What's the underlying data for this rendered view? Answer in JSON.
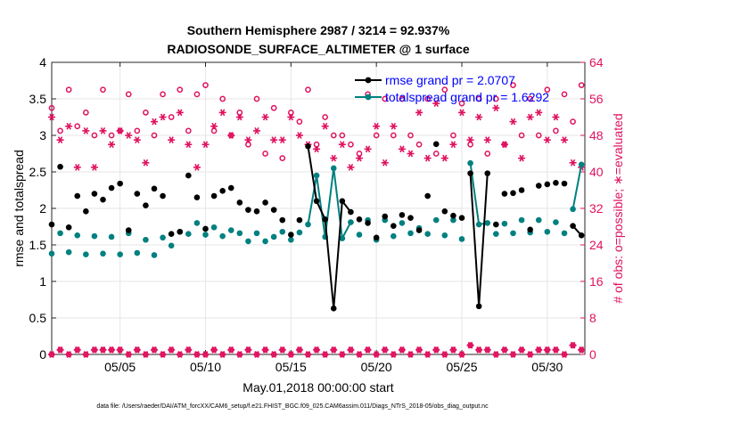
{
  "chart_data": {
    "type": "scatter",
    "title_line1": "Southern Hemisphere 2987 / 3214 = 92.937%",
    "title_line2": "RADIOSONDE_SURFACE_ALTIMETER @ 1 surface",
    "xlabel": "May.01,2018 00:00:00 start",
    "ylabel_left": "rmse and totalspread",
    "ylabel_right": "# of obs: o=possible; ∗=evaluated",
    "footer": "data file: /Users/raeder/DAI/ATM_forcXX/CAM6_setup/f.e21.FHIST_BGC.f09_025.CAM6assim.011/Diags_NTrS_2018-05/obs_diag_output.nc",
    "xlim": [
      1,
      32.2
    ],
    "ylim_left": [
      0,
      4
    ],
    "ylim_right": [
      0,
      64
    ],
    "x_ticks": [
      5,
      10,
      15,
      20,
      25,
      30
    ],
    "x_tick_labels": [
      "05/05",
      "05/10",
      "05/15",
      "05/20",
      "05/25",
      "05/30"
    ],
    "y_left_ticks": [
      0,
      0.5,
      1,
      1.5,
      2,
      2.5,
      3,
      3.5,
      4
    ],
    "y_left_tick_labels": [
      "0",
      "0.5",
      "1",
      "1.5",
      "2",
      "2.5",
      "3",
      "3.5",
      "4"
    ],
    "y_right_ticks": [
      0,
      8,
      16,
      24,
      32,
      40,
      48,
      56,
      64
    ],
    "y_right_tick_labels": [
      "0",
      "8",
      "16",
      "24",
      "32",
      "40",
      "48",
      "56",
      "64"
    ],
    "legend": [
      {
        "name": "rmse grand pr = 2.0707",
        "color": "#000000"
      },
      {
        "name": "totalspread grand pr = 1.6292",
        "color": "#008080"
      }
    ],
    "colors": {
      "rmse": "#000000",
      "spread": "#008080",
      "obs": "#e0115f",
      "legend_text": "#0000ff",
      "grid": "#e6e6e6"
    },
    "rmse": {
      "x": [
        1.0,
        1.5,
        2.0,
        2.5,
        3.0,
        3.5,
        4.0,
        4.5,
        5.0,
        5.5,
        6.0,
        6.5,
        7.0,
        7.5,
        8.0,
        8.5,
        9.0,
        9.5,
        10.0,
        10.5,
        11.0,
        11.5,
        12.0,
        12.5,
        13.0,
        13.5,
        14.0,
        14.5,
        15.0,
        15.5,
        16.0,
        16.5,
        17.0,
        17.5,
        18.0,
        18.5,
        19.0,
        19.5,
        20.0,
        20.5,
        21.0,
        21.5,
        22.0,
        22.5,
        23.0,
        23.5,
        24.0,
        24.5,
        25.0,
        25.5,
        26.0,
        26.5,
        27.0,
        27.5,
        28.0,
        28.5,
        29.0,
        29.5,
        30.0,
        30.5,
        31.0,
        31.5,
        32.0
      ],
      "values": [
        1.78,
        2.57,
        1.74,
        2.17,
        1.96,
        2.2,
        2.12,
        2.28,
        2.34,
        1.7,
        2.2,
        2.04,
        2.27,
        2.17,
        1.65,
        1.68,
        2.45,
        2.15,
        1.72,
        2.17,
        2.24,
        2.28,
        2.08,
        1.98,
        1.96,
        2.08,
        1.98,
        1.84,
        1.64,
        1.84,
        2.85,
        2.1,
        1.85,
        0.63,
        2.1,
        1.95,
        1.85,
        1.8,
        1.6,
        1.89,
        1.76,
        1.91,
        1.87,
        1.7,
        2.17,
        2.88,
        1.96,
        1.9,
        1.87,
        2.48,
        0.66,
        2.48,
        1.78,
        2.2,
        2.21,
        2.25,
        1.71,
        2.31,
        2.33,
        2.35,
        2.34,
        1.76,
        1.63
      ]
    },
    "totalspread": {
      "x": [
        1.0,
        1.5,
        2.0,
        2.5,
        3.0,
        3.5,
        4.0,
        4.5,
        5.0,
        5.5,
        6.0,
        6.5,
        7.0,
        7.5,
        8.0,
        8.5,
        9.0,
        9.5,
        10.0,
        10.5,
        11.0,
        11.5,
        12.0,
        12.5,
        13.0,
        13.5,
        14.0,
        14.5,
        15.0,
        15.5,
        16.0,
        16.5,
        17.0,
        17.5,
        18.0,
        18.5,
        19.0,
        19.5,
        20.0,
        20.5,
        21.0,
        21.5,
        22.0,
        22.5,
        23.0,
        23.5,
        24.0,
        24.5,
        25.0,
        25.5,
        26.0,
        26.5,
        27.0,
        27.5,
        28.0,
        28.5,
        29.0,
        29.5,
        30.0,
        30.5,
        31.0,
        31.5,
        32.0
      ],
      "values": [
        1.38,
        1.66,
        1.4,
        1.63,
        1.37,
        1.62,
        1.38,
        1.61,
        1.37,
        1.66,
        1.39,
        1.57,
        1.36,
        1.6,
        1.49,
        1.68,
        1.65,
        1.8,
        1.64,
        1.74,
        1.62,
        1.7,
        1.66,
        1.55,
        1.66,
        1.55,
        1.61,
        1.68,
        1.57,
        1.67,
        1.78,
        2.45,
        1.61,
        2.55,
        1.59,
        1.81,
        1.64,
        1.84,
        1.57,
        1.84,
        1.62,
        1.8,
        1.66,
        1.73,
        1.65,
        1.84,
        1.63,
        1.84,
        1.58,
        2.62,
        1.78,
        1.8,
        1.65,
        1.79,
        1.66,
        1.84,
        1.67,
        1.84,
        1.68,
        1.81,
        1.66,
        1.99,
        2.6
      ]
    },
    "obs_possible": {
      "x": [
        1.0,
        1.5,
        2.0,
        2.5,
        3.0,
        3.5,
        4.0,
        4.5,
        5.0,
        5.5,
        6.0,
        6.5,
        7.0,
        7.5,
        8.0,
        8.5,
        9.0,
        9.5,
        10.0,
        10.5,
        11.0,
        11.5,
        12.0,
        12.5,
        13.0,
        13.5,
        14.0,
        14.5,
        15.0,
        15.5,
        16.0,
        16.5,
        17.0,
        17.5,
        18.0,
        18.5,
        19.0,
        19.5,
        20.0,
        20.5,
        21.0,
        21.5,
        22.0,
        22.5,
        23.0,
        23.5,
        24.0,
        24.5,
        25.0,
        25.5,
        26.0,
        26.5,
        27.0,
        27.5,
        28.0,
        28.5,
        29.0,
        29.5,
        30.0,
        30.5,
        31.0,
        31.5,
        32.0
      ],
      "values": [
        54,
        49,
        58,
        50,
        53,
        48,
        58,
        48,
        49,
        57,
        49,
        53,
        48,
        57,
        52,
        58,
        49,
        57,
        59,
        49,
        56,
        48,
        53,
        46,
        56,
        44,
        54,
        43,
        53,
        51,
        58,
        46,
        52,
        48,
        48,
        46,
        44,
        57,
        48,
        56,
        48,
        56,
        48,
        46,
        56,
        44,
        58,
        48,
        55,
        46,
        56,
        44,
        56,
        46,
        59,
        48,
        56,
        48,
        58,
        49,
        57,
        51,
        59
      ]
    },
    "obs_evaluated": {
      "x": [
        1.0,
        1.5,
        2.0,
        2.5,
        3.0,
        3.5,
        4.0,
        4.5,
        5.0,
        5.5,
        6.0,
        6.5,
        7.0,
        7.5,
        8.0,
        8.5,
        9.0,
        9.5,
        10.0,
        10.5,
        11.0,
        11.5,
        12.0,
        12.5,
        13.0,
        13.5,
        14.0,
        14.5,
        15.0,
        15.5,
        16.0,
        16.5,
        17.0,
        17.5,
        18.0,
        18.5,
        19.0,
        19.5,
        20.0,
        20.5,
        21.0,
        21.5,
        22.0,
        22.5,
        23.0,
        23.5,
        24.0,
        24.5,
        25.0,
        25.5,
        26.0,
        26.5,
        27.0,
        27.5,
        28.0,
        28.5,
        29.0,
        29.5,
        30.0,
        30.5,
        31.0,
        31.5,
        32.0
      ],
      "values": [
        52,
        47,
        50,
        41,
        49,
        41,
        49,
        46,
        49,
        48,
        47,
        42,
        51,
        52,
        47,
        53,
        46,
        41,
        46,
        50,
        53,
        48,
        52,
        47,
        49,
        52,
        47,
        47,
        52,
        48,
        46,
        45,
        50,
        43,
        46,
        41,
        43,
        45,
        50,
        42,
        50,
        45,
        44,
        53,
        43,
        55,
        43,
        46,
        53,
        47,
        52,
        47,
        54,
        46,
        51,
        43,
        52,
        53,
        47,
        52,
        47,
        42,
        41
      ]
    },
    "obs_possible_low": {
      "x": [
        1.0,
        1.5,
        2.0,
        2.5,
        3.0,
        3.5,
        4.0,
        4.5,
        5.0,
        5.5,
        6.0,
        6.5,
        7.0,
        7.5,
        8.0,
        8.5,
        9.0,
        9.5,
        10.0,
        10.5,
        11.0,
        11.5,
        12.0,
        12.5,
        13.0,
        13.5,
        14.0,
        14.5,
        15.0,
        15.5,
        16.0,
        16.5,
        17.0,
        17.5,
        18.0,
        18.5,
        19.0,
        19.5,
        20.0,
        20.5,
        21.0,
        21.5,
        22.0,
        22.5,
        23.0,
        23.5,
        24.0,
        24.5,
        25.0,
        25.5,
        26.0,
        26.5,
        27.0,
        27.5,
        28.0,
        28.5,
        29.0,
        29.5,
        30.0,
        30.5,
        31.0,
        31.5,
        32.0
      ],
      "values": [
        0,
        1,
        0,
        1,
        0,
        1,
        1,
        1,
        1,
        0,
        1,
        0,
        1,
        0,
        1,
        0,
        1,
        0,
        0,
        1,
        0,
        1,
        0,
        1,
        0,
        1,
        0,
        1,
        0,
        1,
        0,
        1,
        0,
        1,
        0,
        1,
        0,
        1,
        0,
        1,
        0,
        1,
        0,
        1,
        0,
        1,
        0,
        1,
        0,
        2,
        1,
        1,
        0,
        1,
        0,
        1,
        0,
        1,
        1,
        1,
        0,
        2,
        1
      ]
    },
    "obs_evaluated_low": {
      "x": [
        1.0,
        1.5,
        2.0,
        2.5,
        3.0,
        3.5,
        4.0,
        4.5,
        5.0,
        5.5,
        6.0,
        6.5,
        7.0,
        7.5,
        8.0,
        8.5,
        9.0,
        9.5,
        10.0,
        10.5,
        11.0,
        11.5,
        12.0,
        12.5,
        13.0,
        13.5,
        14.0,
        14.5,
        15.0,
        15.5,
        16.0,
        16.5,
        17.0,
        17.5,
        18.0,
        18.5,
        19.0,
        19.5,
        20.0,
        20.5,
        21.0,
        21.5,
        22.0,
        22.5,
        23.0,
        23.5,
        24.0,
        24.5,
        25.0,
        25.5,
        26.0,
        26.5,
        27.0,
        27.5,
        28.0,
        28.5,
        29.0,
        29.5,
        30.0,
        30.5,
        31.0,
        31.5,
        32.0
      ],
      "values": [
        0,
        1,
        0,
        1,
        0,
        1,
        1,
        1,
        1,
        0,
        1,
        0,
        1,
        0,
        1,
        0,
        1,
        0,
        0,
        1,
        0,
        1,
        0,
        1,
        0,
        1,
        0,
        1,
        0,
        1,
        0,
        1,
        0,
        1,
        0,
        1,
        0,
        1,
        0,
        1,
        0,
        1,
        0,
        1,
        0,
        1,
        0,
        1,
        0,
        2,
        1,
        1,
        0,
        1,
        0,
        1,
        0,
        1,
        1,
        1,
        0,
        2,
        1
      ]
    }
  }
}
